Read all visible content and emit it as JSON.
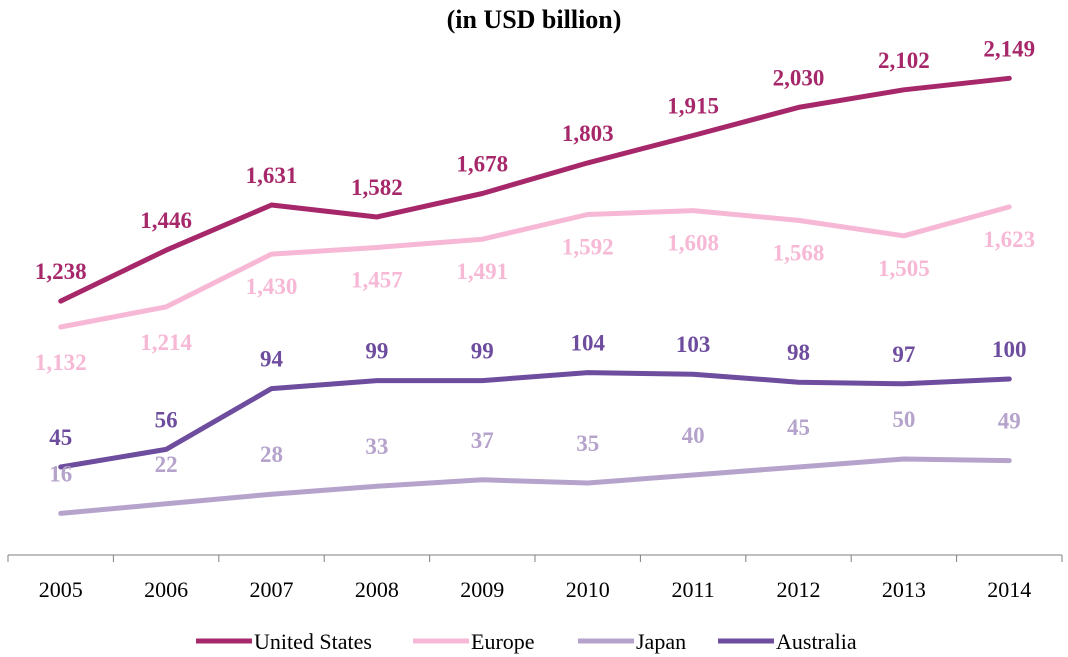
{
  "chart_data": {
    "type": "line",
    "title": "(in USD billion)",
    "categories": [
      "2005",
      "2006",
      "2007",
      "2008",
      "2009",
      "2010",
      "2011",
      "2012",
      "2013",
      "2014"
    ],
    "series": [
      {
        "name": "United States",
        "color": "#A7286A",
        "values": [
          1238,
          1446,
          1631,
          1582,
          1678,
          1803,
          1915,
          2030,
          2102,
          2149
        ]
      },
      {
        "name": "Europe",
        "color": "#F7B8D6",
        "values": [
          1132,
          1214,
          1430,
          1457,
          1491,
          1592,
          1608,
          1568,
          1505,
          1623
        ]
      },
      {
        "name": "Japan",
        "color": "#B5A3CB",
        "values": [
          16,
          22,
          28,
          33,
          37,
          35,
          40,
          45,
          50,
          49
        ]
      },
      {
        "name": "Australia",
        "color": "#6E4C9E",
        "values": [
          45,
          56,
          94,
          99,
          99,
          104,
          103,
          98,
          97,
          100
        ]
      }
    ],
    "data_labels": {
      "United States": [
        "1,238",
        "1,446",
        "1,631",
        "1,582",
        "1,678",
        "1,803",
        "1,915",
        "2,030",
        "2,102",
        "2,149"
      ],
      "Europe": [
        "1,132",
        "1,214",
        "1,430",
        "1,457",
        "1,491",
        "1,592",
        "1,608",
        "1,568",
        "1,505",
        "1,623"
      ],
      "Japan": [
        "16",
        "22",
        "28",
        "33",
        "37",
        "35",
        "40",
        "45",
        "50",
        "49"
      ],
      "Australia": [
        "45",
        "56",
        "94",
        "99",
        "99",
        "104",
        "103",
        "98",
        "97",
        "100"
      ]
    },
    "legend_position": "bottom",
    "grid": false,
    "y_axis_visible": false
  }
}
